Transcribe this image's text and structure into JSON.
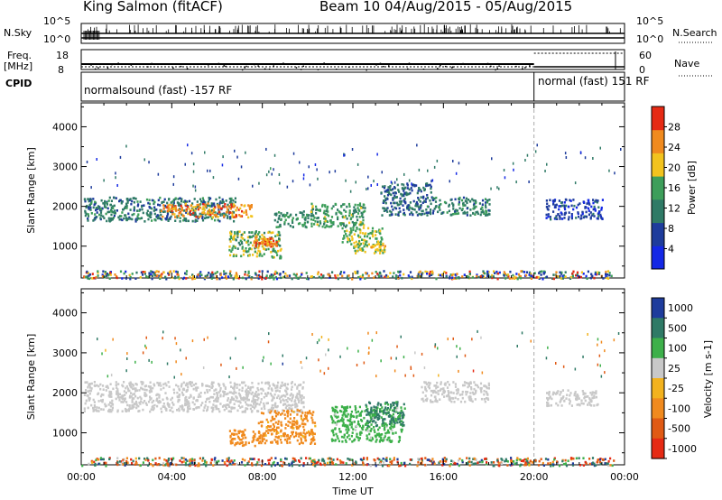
{
  "header": {
    "station_title": "King Salmon (fitACF)",
    "beam_title": "Beam 10 04/Aug/2015 - 05/Aug/2015"
  },
  "summary_panels": {
    "nsky": {
      "label": "N.Sky",
      "tick_top": "10^5",
      "tick_bottom": "10^0"
    },
    "nsearch": {
      "label": "N.Search",
      "tick_top": "10^5",
      "tick_bottom": "10^0"
    },
    "freq": {
      "label_line1": "Freq.",
      "label_line2": "[MHz]",
      "tick_top": "18",
      "tick_bottom": "8"
    },
    "nave": {
      "label": "Nave",
      "tick_top": "60",
      "tick_bottom": "0"
    },
    "cpid": {
      "label": "CPID",
      "segments": [
        {
          "name": "normalsound (fast) -157 RF",
          "start_hour": 0,
          "end_hour": 20.0
        },
        {
          "name": "normal (fast) 151 RF",
          "start_hour": 20.0,
          "end_hour": 24
        }
      ]
    }
  },
  "axis_text": {
    "xlabel": "Time UT",
    "x_ticks": [
      "00:00",
      "04:00",
      "08:00",
      "12:00",
      "16:00",
      "20:00",
      "00:00"
    ],
    "ylabel_top": "Slant Range [km]",
    "ylabel_bottom": "Slant Range [km]",
    "y_ticks": [
      "1000",
      "2000",
      "3000",
      "4000"
    ]
  },
  "colorbars": {
    "power": {
      "label": "Power [dB]",
      "ticks": [
        "4",
        "8",
        "12",
        "16",
        "20",
        "24",
        "28"
      ],
      "colors": [
        "#1428e6",
        "#1e3c9c",
        "#2f7a66",
        "#3d9e5a",
        "#f2c31e",
        "#f08a1e",
        "#e62a14"
      ]
    },
    "velocity": {
      "label": "Velocity [m s-1]",
      "ticks": [
        "1000",
        "500",
        "100",
        "25",
        "-25",
        "-100",
        "-500",
        "-1000"
      ],
      "colors": [
        "#1e3c9c",
        "#2f7a66",
        "#3db04a",
        "#c8c8c8",
        "#f2b21e",
        "#f08a1e",
        "#e05a14",
        "#e62a14"
      ]
    }
  },
  "chart_data": [
    {
      "type": "heatmap",
      "name": "Power panel",
      "x_unit": "hours UT",
      "xlim": [
        0,
        24
      ],
      "ylim": [
        200,
        4600
      ],
      "ylabel": "Slant Range [km]",
      "xlabel": "",
      "colorbar_range_db": [
        0,
        32
      ],
      "features": [
        {
          "t0": 0.1,
          "t1": 6.8,
          "r0": 1650,
          "r1": 2250,
          "value_db": 11
        },
        {
          "t0": 3.5,
          "t1": 7.5,
          "r0": 1750,
          "r1": 2100,
          "value_db": 25
        },
        {
          "t0": 6.5,
          "t1": 8.8,
          "r0": 720,
          "r1": 1400,
          "value_db": 16
        },
        {
          "t0": 7.6,
          "t1": 8.6,
          "r0": 1000,
          "r1": 1250,
          "value_db": 26
        },
        {
          "t0": 8.5,
          "t1": 10.0,
          "r0": 1500,
          "r1": 1900,
          "value_db": 14
        },
        {
          "t0": 10.0,
          "t1": 12.5,
          "r0": 1500,
          "r1": 2100,
          "value_db": 15
        },
        {
          "t0": 11.5,
          "t1": 13.3,
          "r0": 1050,
          "r1": 1500,
          "value_db": 18
        },
        {
          "t0": 12.0,
          "t1": 13.4,
          "r0": 850,
          "r1": 1100,
          "value_db": 20
        },
        {
          "t0": 13.2,
          "t1": 15.5,
          "r0": 1800,
          "r1": 2600,
          "value_db": 10
        },
        {
          "t0": 15.5,
          "t1": 18.0,
          "r0": 1800,
          "r1": 2250,
          "value_db": 12
        },
        {
          "t0": 20.5,
          "t1": 23.0,
          "r0": 1700,
          "r1": 2200,
          "value_db": 6
        },
        {
          "t0": 0.0,
          "t1": 23.5,
          "r0": 200,
          "r1": 400,
          "value_db": 8
        }
      ]
    },
    {
      "type": "heatmap",
      "name": "Velocity panel",
      "x_unit": "hours UT",
      "xlim": [
        0,
        24
      ],
      "ylim": [
        200,
        4600
      ],
      "ylabel": "Slant Range [km]",
      "xlabel": "Time UT",
      "features": [
        {
          "t0": 0.1,
          "t1": 9.8,
          "r0": 1550,
          "r1": 2300,
          "velocity": 0
        },
        {
          "t0": 6.5,
          "t1": 8.0,
          "r0": 700,
          "r1": 1100,
          "velocity": -150
        },
        {
          "t0": 7.8,
          "t1": 10.3,
          "r0": 750,
          "r1": 1600,
          "velocity": -120
        },
        {
          "t0": 11.0,
          "t1": 14.2,
          "r0": 800,
          "r1": 1700,
          "velocity": 120
        },
        {
          "t0": 12.5,
          "t1": 14.3,
          "r0": 1200,
          "r1": 1800,
          "velocity": 400
        },
        {
          "t0": 15.0,
          "t1": 18.0,
          "r0": 1800,
          "r1": 2300,
          "velocity": 0
        },
        {
          "t0": 20.5,
          "t1": 22.8,
          "r0": 1700,
          "r1": 2100,
          "velocity": 0
        },
        {
          "t0": 0.0,
          "t1": 23.5,
          "r0": 200,
          "r1": 400,
          "velocity": 0
        }
      ]
    }
  ]
}
